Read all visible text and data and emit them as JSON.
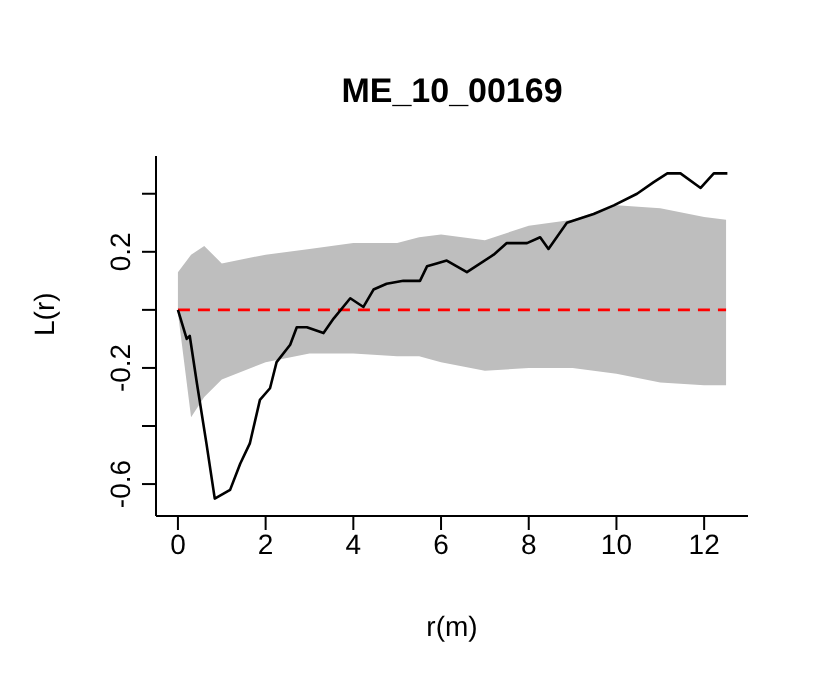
{
  "chart_data": {
    "type": "line",
    "title": "ME_10_00169",
    "xlabel": "r(m)",
    "ylabel": "L(r)",
    "xlim": [
      -0.5,
      13
    ],
    "xticks": [
      0,
      2,
      4,
      6,
      8,
      10,
      12
    ],
    "ylim": [
      -0.71,
      0.53
    ],
    "yticks": [
      -0.6,
      {
        "value": -0.4,
        "label": null
      },
      -0.2,
      {
        "value": 0,
        "label": null
      },
      0.2,
      {
        "value": 0.4,
        "label": null
      }
    ],
    "marker": "none",
    "series": [
      {
        "color": "#ff0000",
        "line_style": "dashed",
        "x": [
          0,
          0.3,
          0.6,
          1,
          2,
          3,
          4,
          5,
          5.5,
          6,
          7,
          8,
          9,
          10,
          11,
          12,
          12.5
        ],
        "values": [
          0,
          0,
          0,
          0,
          0,
          0,
          0,
          0,
          0,
          0,
          0,
          0,
          0,
          0,
          0,
          0,
          0
        ],
        "lower": [
          -0.01,
          -0.37,
          -0.3,
          -0.24,
          -0.18,
          -0.15,
          -0.15,
          -0.16,
          -0.16,
          -0.18,
          -0.21,
          -0.2,
          -0.2,
          -0.22,
          -0.25,
          -0.26,
          -0.26
        ],
        "upper": [
          0.13,
          0.19,
          0.22,
          0.16,
          0.19,
          0.21,
          0.23,
          0.23,
          0.25,
          0.26,
          0.24,
          0.29,
          0.31,
          0.36,
          0.35,
          0.32,
          0.31
        ]
      },
      {
        "color": "#000000",
        "line_style": "solid",
        "x": [
          0,
          0.2,
          0.27,
          0.43,
          0.65,
          0.84,
          0.96,
          1.19,
          1.42,
          1.64,
          1.87,
          2.1,
          2.25,
          2.56,
          2.71,
          2.94,
          3.32,
          3.55,
          3.93,
          4.23,
          4.46,
          4.76,
          5.14,
          5.52,
          5.68,
          5.9,
          6.13,
          6.59,
          7.2,
          7.5,
          7.96,
          8.26,
          8.45,
          8.87,
          9.48,
          9.94,
          10.47,
          10.85,
          11.16,
          11.46,
          11.92,
          12.22,
          12.53
        ],
        "values": [
          0,
          -0.1,
          -0.09,
          -0.25,
          -0.46,
          -0.65,
          -0.64,
          -0.62,
          -0.53,
          -0.46,
          -0.31,
          -0.27,
          -0.18,
          -0.12,
          -0.06,
          -0.06,
          -0.08,
          -0.03,
          0.04,
          0.01,
          0.07,
          0.09,
          0.1,
          0.1,
          0.15,
          0.16,
          0.17,
          0.13,
          0.19,
          0.23,
          0.23,
          0.25,
          0.21,
          0.3,
          0.33,
          0.36,
          0.4,
          0.44,
          0.47,
          0.47,
          0.42,
          0.47,
          0.47
        ]
      }
    ]
  }
}
